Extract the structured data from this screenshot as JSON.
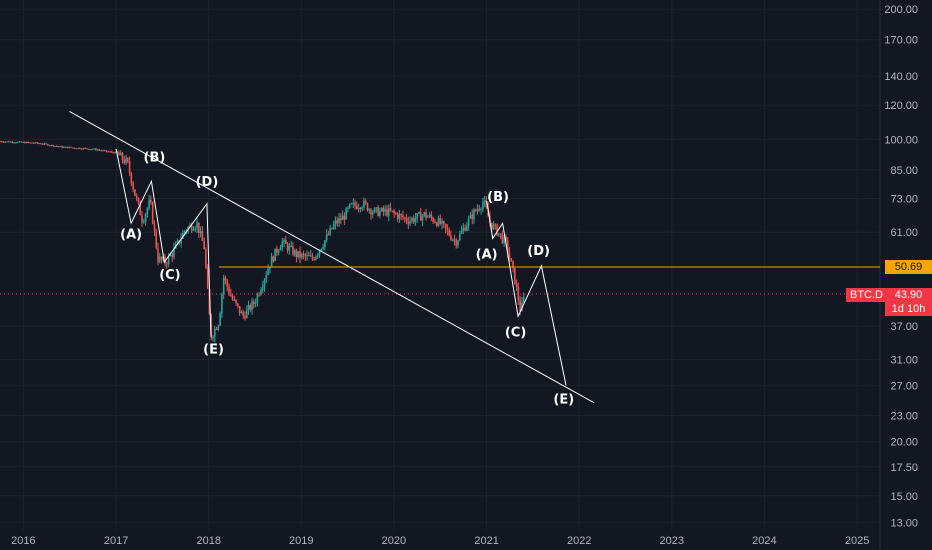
{
  "chart_data": {
    "type": "line",
    "title": "",
    "xlabel": "",
    "ylabel": "",
    "y_scale": "log",
    "ylim": [
      12.5,
      210
    ],
    "xlim": [
      "2015-10-01",
      "2025-04-01"
    ],
    "x_ticks": [
      "2016",
      "2017",
      "2018",
      "2019",
      "2020",
      "2021",
      "2022",
      "2023",
      "2024",
      "2025"
    ],
    "y_ticks": [
      "200.00",
      "170.00",
      "140.00",
      "120.00",
      "100.00",
      "85.00",
      "73.00",
      "61.00",
      "50.69",
      "43.90",
      "37.00",
      "31.00",
      "27.00",
      "23.00",
      "20.00",
      "17.50",
      "15.00",
      "13.00"
    ],
    "series": [
      {
        "type": "candlestick-approx",
        "points": [
          [
            "2015-10-01",
            99
          ],
          [
            "2016-03-01",
            98
          ],
          [
            "2016-06-01",
            96
          ],
          [
            "2016-10-01",
            95
          ],
          [
            "2017-01-01",
            93
          ],
          [
            "2017-02-15",
            88
          ],
          [
            "2017-03-15",
            75
          ],
          [
            "2017-04-15",
            65
          ],
          [
            "2017-05-15",
            72
          ],
          [
            "2017-06-15",
            53
          ],
          [
            "2017-07-15",
            52
          ],
          [
            "2017-08-15",
            55
          ],
          [
            "2017-10-01",
            62
          ],
          [
            "2017-11-15",
            64
          ],
          [
            "2017-12-15",
            56
          ],
          [
            "2018-01-10",
            35
          ],
          [
            "2018-02-10",
            38
          ],
          [
            "2018-03-01",
            48
          ],
          [
            "2018-04-01",
            43
          ],
          [
            "2018-05-15",
            39
          ],
          [
            "2018-07-01",
            42
          ],
          [
            "2018-09-01",
            52
          ],
          [
            "2018-10-15",
            58
          ],
          [
            "2018-12-15",
            54
          ],
          [
            "2019-02-15",
            53
          ],
          [
            "2019-04-01",
            58
          ],
          [
            "2019-05-15",
            64
          ],
          [
            "2019-06-15",
            66
          ],
          [
            "2019-07-15",
            70
          ],
          [
            "2019-09-01",
            71
          ],
          [
            "2019-10-15",
            68
          ],
          [
            "2019-12-15",
            68
          ],
          [
            "2020-03-01",
            65
          ],
          [
            "2020-05-01",
            67
          ],
          [
            "2020-07-01",
            64
          ],
          [
            "2020-09-01",
            58
          ],
          [
            "2020-10-15",
            64
          ],
          [
            "2020-11-15",
            68
          ],
          [
            "2020-12-20",
            72
          ],
          [
            "2021-01-15",
            64
          ],
          [
            "2021-02-15",
            61
          ],
          [
            "2021-03-20",
            57
          ],
          [
            "2021-04-20",
            48
          ],
          [
            "2021-05-15",
            40
          ],
          [
            "2021-06-01",
            44
          ]
        ]
      },
      {
        "name": "",
        "type": "wave",
        "points": [
          [
            "2017-01-01",
            95
          ],
          [
            "2017-03-01",
            64
          ],
          [
            "2017-05-20",
            80
          ],
          [
            "2017-07-10",
            52
          ],
          [
            "2017-12-25",
            71
          ],
          [
            "2018-01-10",
            35
          ]
        ]
      },
      {
        "name": "",
        "type": "wave",
        "points": [
          [
            "2021-01-01",
            72
          ],
          [
            "2021-01-25",
            59
          ],
          [
            "2021-03-05",
            64
          ],
          [
            "2021-05-05",
            39
          ],
          [
            "2021-08-05",
            51
          ],
          [
            "2021-11-10",
            27
          ]
        ]
      }
    ],
    "trendline": {
      "from": [
        "2016-07-01",
        116
      ],
      "to": [
        "2022-03-01",
        24.6
      ]
    },
    "horizontal_level": {
      "value": 50.69,
      "from": "2018-02-10",
      "label": "50.69",
      "color": "#f7a600"
    },
    "current_price": {
      "value": 43.9,
      "ticker": "BTC.D",
      "price_label": "43.90",
      "countdown": "1d 10h",
      "color": "#f23645"
    },
    "annotations": [
      {
        "text": "(A)",
        "x": "2017-03-01",
        "y": 59
      },
      {
        "text": "(B)",
        "x": "2017-06-01",
        "y": 89
      },
      {
        "text": "(C)",
        "x": "2017-08-01",
        "y": 47.5
      },
      {
        "text": "(D)",
        "x": "2017-12-25",
        "y": 78
      },
      {
        "text": "(E)",
        "x": "2018-01-20",
        "y": 32
      },
      {
        "text": "(A)",
        "x": "2021-01-01",
        "y": 53
      },
      {
        "text": "(B)",
        "x": "2021-02-15",
        "y": 72
      },
      {
        "text": "(C)",
        "x": "2021-04-25",
        "y": 35
      },
      {
        "text": "(D)",
        "x": "2021-07-25",
        "y": 54
      },
      {
        "text": "(E)",
        "x": "2021-11-01",
        "y": 24.5
      }
    ],
    "colors": {
      "up": "#26a69a",
      "down": "#ef5350",
      "background": "#131722",
      "lines": "#ffffff"
    },
    "grid": true,
    "legend": "none"
  }
}
